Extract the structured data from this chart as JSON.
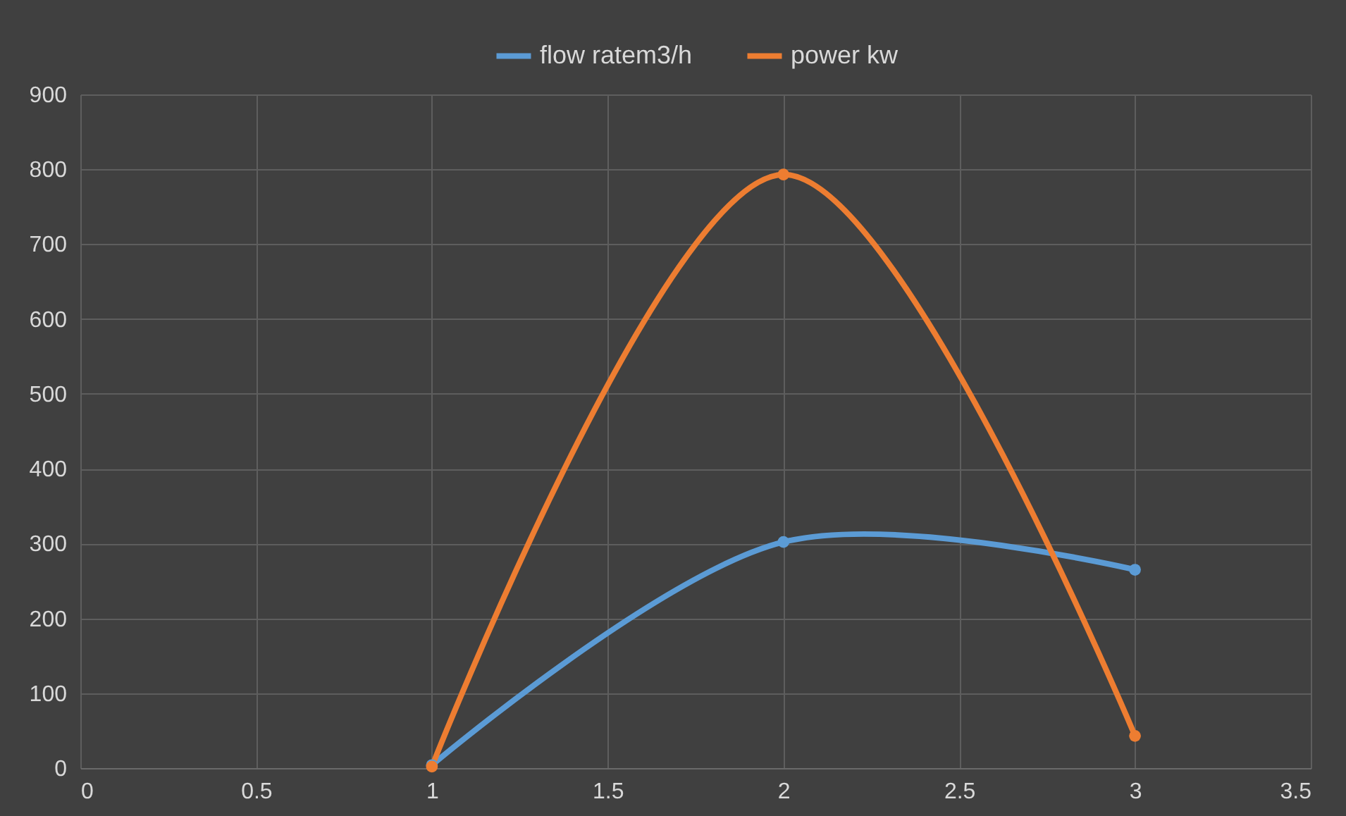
{
  "chart_data": {
    "type": "line",
    "x": [
      1,
      2,
      3
    ],
    "series": [
      {
        "name": "flow ratem3/h",
        "color": "#5b9bd5",
        "values": [
          4,
          302,
          265
        ]
      },
      {
        "name": "power kw",
        "color": "#ed7d31",
        "values": [
          2,
          793,
          43
        ]
      }
    ],
    "xlim": [
      0,
      3.5
    ],
    "xticks": [
      0,
      0.5,
      1,
      1.5,
      2,
      2.5,
      3,
      3.5
    ],
    "ylim": [
      0,
      900
    ],
    "yticks": [
      0,
      100,
      200,
      300,
      400,
      500,
      600,
      700,
      800,
      900
    ],
    "grid": true,
    "legend": "top",
    "marker": "circle",
    "line_style": "solid"
  }
}
